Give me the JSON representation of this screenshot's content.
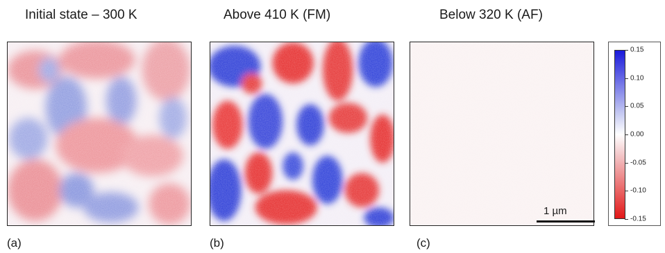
{
  "titles": {
    "a": "Initial state – 300 K",
    "b": "Above 410 K (FM)",
    "c": "Below 320 K (AF)"
  },
  "panel_labels": {
    "a": "(a)",
    "b": "(b)",
    "c": "(c)"
  },
  "colorbar": {
    "ticks": [
      "0.15",
      "0.10",
      "0.05",
      "0.00",
      "-0.05",
      "-0.10",
      "-0.15"
    ],
    "colors": {
      "positive": "#1a1adb",
      "zero": "#ffffff",
      "negative": "#e21818"
    }
  },
  "scalebar": {
    "label": "1 µm"
  }
}
